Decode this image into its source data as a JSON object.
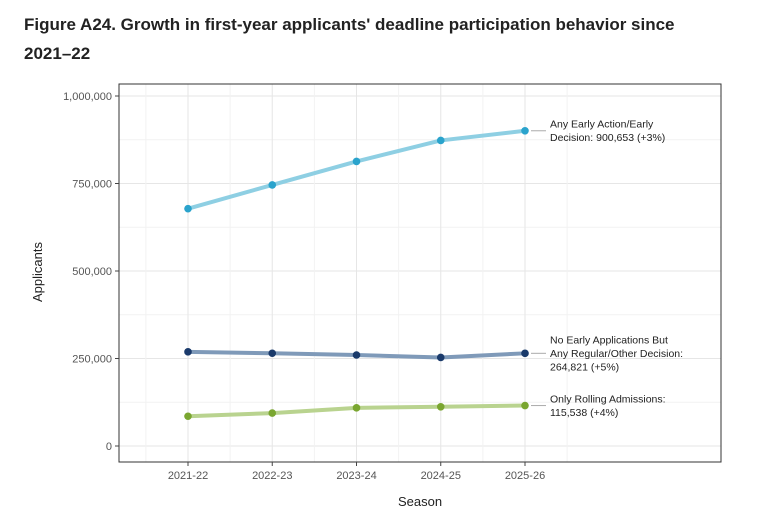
{
  "figure_title": "Figure A24. Growth in first-year applicants' deadline participation behavior since 2021–22",
  "chart_data": {
    "type": "line",
    "title": "Figure A24. Growth in first-year applicants' deadline participation behavior since 2021–22",
    "xlabel": "Season",
    "ylabel": "Applicants",
    "categories": [
      "2021-22",
      "2022-23",
      "2023-24",
      "2024-25",
      "2025-26"
    ],
    "ylim": [
      0,
      1000000
    ],
    "yticks": [
      0,
      250000,
      500000,
      750000,
      1000000
    ],
    "ytick_labels": [
      "0",
      "250,000",
      "500,000",
      "750,000",
      "1,000,000"
    ],
    "grid": true,
    "series": [
      {
        "name": "Any Early Action/Early Decision",
        "values": [
          678000,
          746000,
          813000,
          873000,
          900653
        ],
        "line_color": "#8ecfe3",
        "point_color": "#2aa3cc",
        "label_lines": [
          "Any Early Action/Early",
          "Decision: 900,653 (+3%)"
        ]
      },
      {
        "name": "No Early Applications But Any Regular/Other Decision",
        "values": [
          269000,
          265000,
          260000,
          253000,
          264821
        ],
        "line_color": "#7f9ab9",
        "point_color": "#1a3a6b",
        "label_lines": [
          "No Early Applications But",
          "Any Regular/Other Decision:",
          "264,821 (+5%)"
        ]
      },
      {
        "name": "Only Rolling Admissions",
        "values": [
          85000,
          94000,
          109000,
          112000,
          115538
        ],
        "line_color": "#b9d38f",
        "point_color": "#7aa630",
        "label_lines": [
          "Only Rolling Admissions:",
          "115,538 (+4%)"
        ]
      }
    ]
  }
}
